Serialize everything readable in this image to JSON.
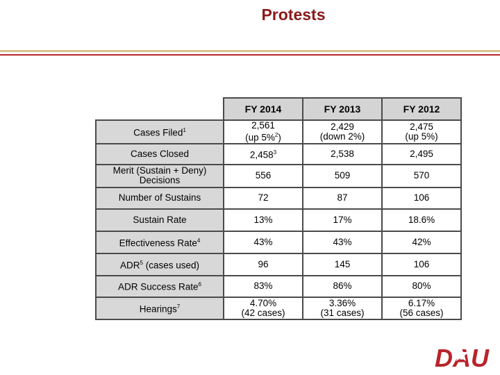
{
  "title": "Protests",
  "table": {
    "headers": [
      "FY 2014",
      "FY 2013",
      "FY 2012"
    ],
    "rows": [
      {
        "label": [
          "Cases Filed",
          "1"
        ],
        "values": [
          [
            "2,561",
            "(up 5%",
            "2",
            ")"
          ],
          [
            "2,429",
            "(down 2%)"
          ],
          [
            "2,475",
            "(up 5%)"
          ]
        ]
      },
      {
        "label": [
          "Cases Closed"
        ],
        "values": [
          [
            "2,458",
            "3"
          ],
          [
            "2,538"
          ],
          [
            "2,495"
          ]
        ]
      },
      {
        "label": [
          "Merit (Sustain + Deny)",
          "Decisions"
        ],
        "values": [
          [
            "556"
          ],
          [
            "509"
          ],
          [
            "570"
          ]
        ]
      },
      {
        "label": [
          "Number of Sustains"
        ],
        "values": [
          [
            "72"
          ],
          [
            "87"
          ],
          [
            "106"
          ]
        ]
      },
      {
        "label": [
          "Sustain Rate"
        ],
        "values": [
          [
            "13%"
          ],
          [
            "17%"
          ],
          [
            "18.6%"
          ]
        ]
      },
      {
        "label": [
          "Effectiveness Rate",
          "4"
        ],
        "values": [
          [
            "43%"
          ],
          [
            "43%"
          ],
          [
            "42%"
          ]
        ]
      },
      {
        "label": [
          "ADR",
          "5",
          " (cases used)"
        ],
        "values": [
          [
            "96"
          ],
          [
            "145"
          ],
          [
            "106"
          ]
        ]
      },
      {
        "label": [
          "ADR Success Rate",
          "6"
        ],
        "values": [
          [
            "83%"
          ],
          [
            "86%"
          ],
          [
            "80%"
          ]
        ]
      },
      {
        "label": [
          "Hearings",
          "7"
        ],
        "values": [
          [
            "4.70%",
            "(42 cases)"
          ],
          [
            "3.36%",
            "(31 cases)"
          ],
          [
            "6.17%",
            "(56 cases)"
          ]
        ]
      }
    ]
  },
  "logo": {
    "text": "DAU",
    "color": "#b8242b"
  }
}
